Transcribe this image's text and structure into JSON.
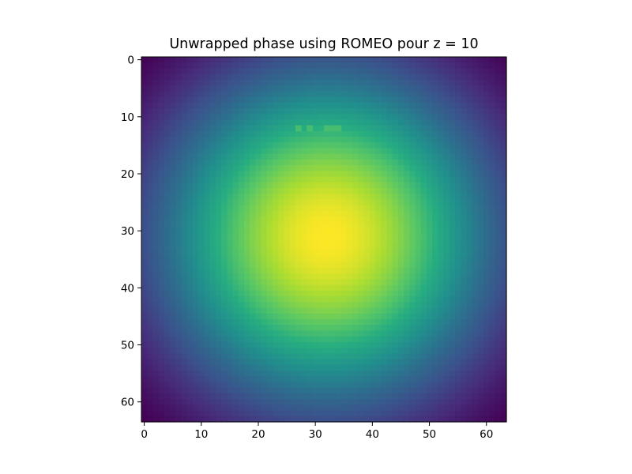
{
  "chart_data": {
    "type": "heatmap",
    "title": "Unwrapped phase using ROMEO pour z = 10",
    "xlabel": "",
    "ylabel": "",
    "colormap": "viridis",
    "grid": false,
    "legend": "none",
    "shape": [
      64,
      64
    ],
    "xlim": [
      -0.5,
      63.5
    ],
    "ylim": [
      63.5,
      -0.5
    ],
    "x_ticks": [
      0,
      10,
      20,
      30,
      40,
      50,
      60
    ],
    "y_ticks": [
      0,
      10,
      20,
      30,
      40,
      50,
      60
    ],
    "field": {
      "kind": "radial-gaussian-like",
      "center": [
        32,
        31
      ],
      "peak": 1.0,
      "corner": 0.0
    },
    "anomalies": [
      {
        "row": 12,
        "cols": [
          27
        ],
        "value": 0.7
      },
      {
        "row": 12,
        "cols": [
          29
        ],
        "value": 0.7
      },
      {
        "row": 12,
        "cols": [
          32,
          33,
          34
        ],
        "value": 0.7
      }
    ]
  },
  "colors": {
    "frame": "#000000",
    "background": "#ffffff"
  }
}
